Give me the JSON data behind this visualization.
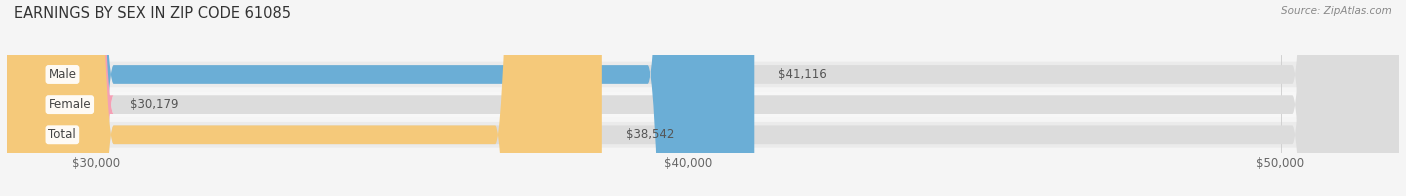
{
  "title": "EARNINGS BY SEX IN ZIP CODE 61085",
  "source": "Source: ZipAtlas.com",
  "categories": [
    "Male",
    "Female",
    "Total"
  ],
  "values": [
    41116,
    30179,
    38542
  ],
  "bar_colors": [
    "#6baed6",
    "#f4a0b5",
    "#f5c97a"
  ],
  "value_labels": [
    "$41,116",
    "$30,179",
    "$38,542"
  ],
  "xlim_data": [
    0,
    52000
  ],
  "xaxis_min": 28500,
  "xaxis_max": 52000,
  "xticks": [
    30000,
    40000,
    50000
  ],
  "xtick_labels": [
    "$30,000",
    "$40,000",
    "$50,000"
  ],
  "bar_height": 0.62,
  "track_color": "#e8e8e8",
  "background_color": "#f5f5f5",
  "title_fontsize": 10.5,
  "tick_fontsize": 8.5,
  "label_fontsize": 8.5,
  "value_fontsize": 8.5,
  "row_bg_colors": [
    "#eeeeee",
    "#f9f9f9",
    "#eeeeee"
  ]
}
